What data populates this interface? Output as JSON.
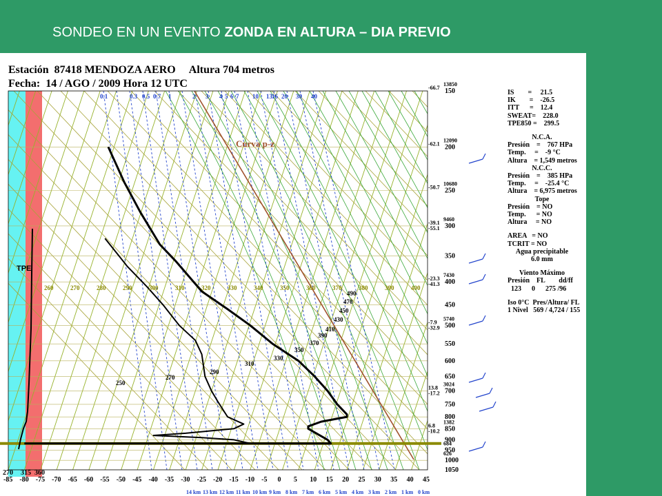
{
  "slide": {
    "title_plain": "SONDEO EN UN EVENTO ",
    "title_bold": "ZONDA EN ALTURA – DIA PREVIO"
  },
  "header": {
    "line1": "Estación  87418 MENDOZA AERO     Altura 704 metros",
    "line2": "Fecha:  14 / AGO / 2009 Hora 12 UTC"
  },
  "indices": {
    "is": "IS        =     21.5",
    "ik": "IK        =    -26.5",
    "itt": "ITT      =    12.4",
    "sweat": "SWEAT=    228.0",
    "tpe850": "TPE850 =    299.5",
    "nca_title": "N.C.A.",
    "nca_pres": "Presión    =    767 HPa",
    "nca_temp": "Temp.     =    -9 °C",
    "nca_alt": "Altura    = 1,549 metros",
    "ncc_title": "N.C.C.",
    "ncc_pres": "Presión    =    385 HPa",
    "ncc_temp": "Temp.     =    -25.4 °C",
    "ncc_alt": "Altura    = 6,975 metros",
    "tope_title": "Tope",
    "tope_pres": "Presión    = NO",
    "tope_temp": "Temp.      = NO",
    "tope_alt": "Altura     = NO",
    "area": "AREA   = NO",
    "tcrit": "TCRIT = NO",
    "agua_title": "Agua precipitable",
    "agua_val": "6.0 mm",
    "viento_title": "Viento Máximo",
    "viento_hdr": "Presión    FL        dd/ff",
    "viento_val": "  123      0      275 /96",
    "iso_title": "Iso 0°C  Pres/Altura/ FL",
    "iso_val": "1 Nivel   569 / 4,724 / 155"
  },
  "chart_data": {
    "type": "line",
    "title": "",
    "xlabel": "",
    "ylabel": "",
    "x_ticks": [
      -85,
      -80,
      -75,
      -70,
      -65,
      -60,
      -55,
      -50,
      -45,
      -40,
      -35,
      -30,
      -25,
      -20,
      -15,
      -10,
      -5,
      0,
      5,
      10,
      15,
      20,
      25,
      30,
      35,
      40,
      45
    ],
    "x_ticks_extra": [
      "270",
      "315",
      "360"
    ],
    "km_labels": [
      "14 km",
      "13 km",
      "12 km",
      "11 km",
      "10 km",
      "9 km",
      "8 km",
      "7 km",
      "6 km",
      "5 km",
      "4 km",
      "3 km",
      "2 km",
      "1 km",
      "0 km"
    ],
    "pressure_ticks": [
      150,
      200,
      250,
      300,
      350,
      400,
      450,
      500,
      550,
      600,
      650,
      700,
      750,
      800,
      850,
      900,
      950,
      1000,
      1050
    ],
    "left_annotations": [
      {
        "p": 150,
        "temp": "-66.7",
        "height": "13850"
      },
      {
        "p": 200,
        "temp": "-62.1",
        "height": "12090"
      },
      {
        "p": 250,
        "temp": "-50.7",
        "height": "10680"
      },
      {
        "p": 300,
        "temp": "-39.1",
        "dew": "-55.1",
        "height": "9460"
      },
      {
        "p": 400,
        "temp": "-23.3",
        "dew": "-41.3",
        "height": "7430"
      },
      {
        "p": 500,
        "temp": "-7.9",
        "dew": "-32.9",
        "height": "5740"
      },
      {
        "p": 700,
        "temp": "13.8",
        "dew": "-17.2",
        "height": "3024"
      },
      {
        "p": 850,
        "temp": "6.8",
        "dew": "-10.2",
        "height": "1382"
      },
      {
        "p": 950,
        "height": "684"
      },
      {
        "p": 1000,
        "height": "626"
      }
    ],
    "mixing_ratio_labels": [
      "0.1",
      "0.3",
      "0.5",
      "0.7",
      "1",
      "2",
      "3",
      "4",
      "5",
      "6",
      "7",
      "10",
      "13",
      "16",
      "20",
      "30",
      "40"
    ],
    "theta_labels": [
      "260",
      "270",
      "280",
      "290",
      "300",
      "310",
      "320",
      "330",
      "340",
      "350",
      "360",
      "370",
      "380",
      "390",
      "400"
    ],
    "theta_e_labels": [
      "250",
      "270",
      "290",
      "310",
      "330",
      "350",
      "370",
      "390",
      "410",
      "430",
      "450",
      "470",
      "490"
    ],
    "curve_label": "Curva p-z",
    "tpe_label": "TPE",
    "series": [
      {
        "name": "",
        "role": "temperature",
        "points": [
          [
            -54,
            200
          ],
          [
            -49,
            240
          ],
          [
            -44,
            280
          ],
          [
            -38,
            330
          ],
          [
            -33,
            360
          ],
          [
            -25,
            420
          ],
          [
            -17,
            460
          ],
          [
            -10,
            500
          ],
          [
            -3,
            550
          ],
          [
            5,
            600
          ],
          [
            10,
            650
          ],
          [
            14,
            700
          ],
          [
            17,
            750
          ],
          [
            20,
            790
          ],
          [
            20,
            800
          ],
          [
            12,
            820
          ],
          [
            8,
            840
          ],
          [
            8,
            850
          ],
          [
            14,
            900
          ],
          [
            15,
            917
          ],
          [
            -80,
            917
          ]
        ]
      },
      {
        "name": "",
        "role": "dewpoint",
        "points": [
          [
            -55,
            320
          ],
          [
            -48,
            370
          ],
          [
            -42,
            410
          ],
          [
            -37,
            450
          ],
          [
            -32,
            500
          ],
          [
            -27,
            540
          ],
          [
            -25,
            580
          ],
          [
            -24,
            650
          ],
          [
            -22,
            700
          ],
          [
            -20,
            740
          ],
          [
            -17,
            800
          ],
          [
            -12,
            830
          ],
          [
            -15,
            850
          ],
          [
            -30,
            870
          ],
          [
            -40,
            880
          ],
          [
            -25,
            890
          ],
          [
            -15,
            900
          ],
          [
            -10,
            917
          ],
          [
            -80,
            917
          ]
        ]
      }
    ]
  }
}
